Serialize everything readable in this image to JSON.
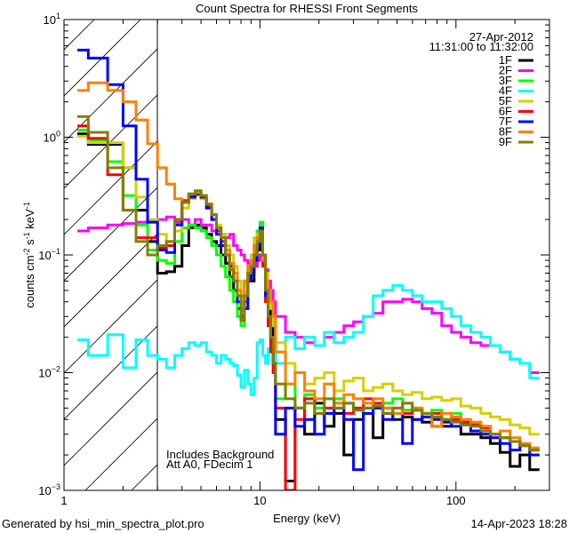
{
  "chart_data": {
    "type": "line",
    "title": "Count Spectra for RHESSI Front Segments",
    "xlabel": "Energy (keV)",
    "ylabel": {
      "main": "counts cm",
      "exp1": "-2",
      "mid": " s",
      "exp2": "-1",
      "end": " keV",
      "exp3": "-1"
    },
    "xscale": "log",
    "yscale": "log",
    "xlim": [
      1,
      300
    ],
    "ylim": [
      0.001,
      10
    ],
    "x_ticks": [
      {
        "v": 1,
        "label": "1"
      },
      {
        "v": 10,
        "label": "10"
      },
      {
        "v": 100,
        "label": "100"
      }
    ],
    "y_ticks": [
      {
        "v": 10,
        "base": "10",
        "exp": "1"
      },
      {
        "v": 1,
        "base": "10",
        "exp": "0"
      },
      {
        "v": 0.1,
        "base": "10",
        "exp": "−1"
      },
      {
        "v": 0.01,
        "base": "10",
        "exp": "−2"
      },
      {
        "v": 0.001,
        "base": "10",
        "exp": "−3"
      }
    ],
    "shaded_region_below_keV": 3,
    "date": "27-Apr-2012",
    "time_range": "11:31:00 to 11:32:00",
    "annotations": [
      "Includes Background",
      "Att A0, FDecim 1"
    ],
    "legend_position": "top-right",
    "bin_edges": [
      1.17,
      1.33,
      1.67,
      2,
      2.33,
      2.67,
      3,
      3.33,
      3.67,
      4,
      4.33,
      4.67,
      5,
      5.33,
      5.67,
      6,
      6.33,
      6.67,
      7,
      7.33,
      7.67,
      8,
      8.33,
      8.67,
      9,
      9.33,
      9.67,
      10,
      10.33,
      10.67,
      11,
      11.33,
      11.67,
      12,
      13.5,
      15.1,
      16.9,
      19,
      21.3,
      23.9,
      26.8,
      30,
      33.7,
      37.8,
      42.4,
      47.6,
      53.4,
      59.9,
      67.2,
      75.4,
      84.6,
      94.9,
      106,
      119,
      134,
      150,
      168,
      189,
      212,
      238,
      267,
      300
    ],
    "series": [
      {
        "name": "1F",
        "color": "#000000",
        "values": [
          1.07,
          0.87,
          0.87,
          0.55,
          0.24,
          0.13,
          0.07,
          0.072,
          0.08,
          0.12,
          0.17,
          0.18,
          0.17,
          0.15,
          0.13,
          0.12,
          0.1,
          0.085,
          0.065,
          0.05,
          0.035,
          0.028,
          0.06,
          0.07,
          0.06,
          0.08,
          0.11,
          0.16,
          0.09,
          0.06,
          0.04,
          0.025,
          0.02,
          0.004,
          0.0012,
          0.005,
          0.003,
          0.0055,
          0.0035,
          0.0045,
          0.002,
          0.004,
          0.005,
          0.0028,
          0.0045,
          0.004,
          0.0042,
          0.004,
          0.0038,
          0.0035,
          0.0035,
          0.004,
          0.003,
          0.003,
          0.0028,
          0.0025,
          0.0021,
          0.0016,
          0.002,
          0.0015
        ]
      },
      {
        "name": "2F",
        "color": "#ff00ff",
        "values": [
          0.16,
          0.17,
          0.18,
          0.185,
          0.19,
          0.19,
          0.2,
          0.21,
          0.19,
          0.2,
          0.18,
          0.2,
          0.18,
          0.18,
          0.16,
          0.17,
          0.15,
          0.14,
          0.15,
          0.12,
          0.11,
          0.1,
          0.09,
          0.085,
          0.075,
          0.08,
          0.09,
          0.1,
          0.09,
          0.075,
          0.06,
          0.05,
          0.04,
          0.03,
          0.022,
          0.02,
          0.018,
          0.017,
          0.02,
          0.022,
          0.025,
          0.027,
          0.03,
          0.032,
          0.04,
          0.04,
          0.042,
          0.04,
          0.035,
          0.032,
          0.025,
          0.022,
          0.02,
          0.018,
          0.017,
          0.017,
          0.015,
          0.013,
          0.012,
          0.01
        ]
      },
      {
        "name": "3F",
        "color": "#00ff00",
        "values": [
          1.15,
          0.95,
          0.62,
          0.32,
          0.18,
          0.11,
          0.09,
          0.085,
          0.13,
          0.17,
          0.18,
          0.17,
          0.16,
          0.14,
          0.12,
          0.1,
          0.08,
          0.065,
          0.05,
          0.04,
          0.03,
          0.025,
          0.035,
          0.06,
          0.08,
          0.12,
          0.16,
          0.19,
          0.1,
          0.05,
          0.03,
          0.02,
          0.012,
          0.006,
          0.008,
          0.005,
          0.0065,
          0.005,
          0.0045,
          0.006,
          0.0055,
          0.005,
          0.0045,
          0.006,
          0.0055,
          0.006,
          0.0048,
          0.005,
          0.0045,
          0.0048,
          0.004,
          0.0045,
          0.004,
          0.0038,
          0.0035,
          0.003,
          0.0028,
          0.0026,
          0.0024,
          0.0022
        ]
      },
      {
        "name": "4F",
        "color": "#00ffff",
        "values": [
          0.019,
          0.014,
          0.021,
          0.011,
          0.019,
          0.014,
          0.013,
          0.011,
          0.014,
          0.016,
          0.018,
          0.017,
          0.018,
          0.015,
          0.014,
          0.012,
          0.014,
          0.013,
          0.012,
          0.0115,
          0.0095,
          0.0075,
          0.0105,
          0.008,
          0.0065,
          0.009,
          0.018,
          0.019,
          0.014,
          0.012,
          0.016,
          0.02,
          0.015,
          0.012,
          0.02,
          0.016,
          0.02,
          0.017,
          0.022,
          0.018,
          0.02,
          0.022,
          0.03,
          0.045,
          0.05,
          0.055,
          0.05,
          0.045,
          0.04,
          0.04,
          0.035,
          0.03,
          0.025,
          0.022,
          0.02,
          0.017,
          0.015,
          0.013,
          0.012,
          0.009
        ]
      },
      {
        "name": "5F",
        "color": "#d4d000",
        "values": [
          1.02,
          0.9,
          0.9,
          0.55,
          0.31,
          0.2,
          0.15,
          0.13,
          0.16,
          0.25,
          0.3,
          0.32,
          0.3,
          0.26,
          0.22,
          0.18,
          0.15,
          0.12,
          0.1,
          0.08,
          0.06,
          0.045,
          0.06,
          0.08,
          0.1,
          0.14,
          0.15,
          0.16,
          0.1,
          0.07,
          0.05,
          0.035,
          0.025,
          0.018,
          0.012,
          0.01,
          0.008,
          0.009,
          0.01,
          0.007,
          0.0085,
          0.009,
          0.007,
          0.0075,
          0.008,
          0.007,
          0.0065,
          0.0068,
          0.006,
          0.0062,
          0.0058,
          0.006,
          0.0052,
          0.005,
          0.0045,
          0.0042,
          0.004,
          0.0036,
          0.0034,
          0.003
        ]
      },
      {
        "name": "6F",
        "color": "#ff0000",
        "values": [
          1.25,
          0.98,
          0.48,
          0.24,
          0.14,
          0.14,
          0.115,
          0.12,
          0.2,
          0.29,
          0.32,
          0.35,
          0.31,
          0.26,
          0.2,
          0.16,
          0.13,
          0.1,
          0.08,
          0.06,
          0.045,
          0.03,
          0.04,
          0.06,
          0.08,
          0.1,
          0.12,
          0.14,
          0.08,
          0.04,
          0.025,
          0.015,
          0.01,
          0.005,
          0.001,
          0.004,
          0.006,
          0.0045,
          0.005,
          0.0055,
          0.0045,
          0.005,
          0.006,
          0.0055,
          0.005,
          0.005,
          0.0045,
          0.0048,
          0.0042,
          0.0045,
          0.004,
          0.004,
          0.0038,
          0.0036,
          0.0034,
          0.003,
          0.0028,
          0.0026,
          0.0024,
          0.0022
        ]
      },
      {
        "name": "7F",
        "color": "#0000ff",
        "values": [
          5.5,
          4.7,
          2.8,
          1.25,
          0.44,
          0.19,
          0.11,
          0.105,
          0.18,
          0.28,
          0.31,
          0.33,
          0.31,
          0.25,
          0.2,
          0.15,
          0.12,
          0.1,
          0.08,
          0.06,
          0.04,
          0.028,
          0.035,
          0.06,
          0.07,
          0.09,
          0.12,
          0.17,
          0.1,
          0.045,
          0.03,
          0.02,
          0.012,
          0.003,
          0.005,
          0.0035,
          0.004,
          0.003,
          0.0045,
          0.005,
          0.004,
          0.0015,
          0.0045,
          0.005,
          0.004,
          0.0045,
          0.0025,
          0.004,
          0.0042,
          0.004,
          0.0038,
          0.0035,
          0.0036,
          0.0032,
          0.003,
          0.0028,
          0.0025,
          0.0022,
          0.0024,
          0.002
        ]
      },
      {
        "name": "8F",
        "color": "#ff8000",
        "values": [
          2.5,
          2.9,
          2.5,
          2.0,
          1.4,
          0.88,
          0.55,
          0.4,
          0.3,
          0.28,
          0.33,
          0.34,
          0.32,
          0.27,
          0.22,
          0.17,
          0.14,
          0.11,
          0.085,
          0.07,
          0.05,
          0.04,
          0.06,
          0.08,
          0.09,
          0.12,
          0.14,
          0.15,
          0.09,
          0.06,
          0.05,
          0.04,
          0.03,
          0.015,
          0.008,
          0.01,
          0.007,
          0.006,
          0.008,
          0.0055,
          0.0065,
          0.006,
          0.0055,
          0.006,
          0.005,
          0.0045,
          0.0055,
          0.005,
          0.0045,
          0.0035,
          0.0045,
          0.0042,
          0.004,
          0.0038,
          0.0035,
          0.003,
          0.0032,
          0.0028,
          0.0025,
          0.0023
        ]
      },
      {
        "name": "9F",
        "color": "#808000",
        "values": [
          1.5,
          1.1,
          0.55,
          0.24,
          0.13,
          0.1,
          0.12,
          0.13,
          0.2,
          0.28,
          0.33,
          0.35,
          0.32,
          0.27,
          0.22,
          0.17,
          0.14,
          0.1,
          0.075,
          0.06,
          0.045,
          0.028,
          0.045,
          0.07,
          0.08,
          0.1,
          0.13,
          0.16,
          0.1,
          0.05,
          0.03,
          0.02,
          0.012,
          0.008,
          0.006,
          0.005,
          0.0055,
          0.0045,
          0.006,
          0.005,
          0.0055,
          0.0048,
          0.005,
          0.0052,
          0.0045,
          0.005,
          0.0055,
          0.0048,
          0.0045,
          0.0042,
          0.004,
          0.0038,
          0.0036,
          0.0035,
          0.0032,
          0.003,
          0.0028,
          0.0026,
          0.0024,
          0.0022
        ]
      }
    ]
  },
  "footer": {
    "generated_by": "Generated by hsi_min_spectra_plot.pro",
    "timestamp": "14-Apr-2023 18:28"
  }
}
